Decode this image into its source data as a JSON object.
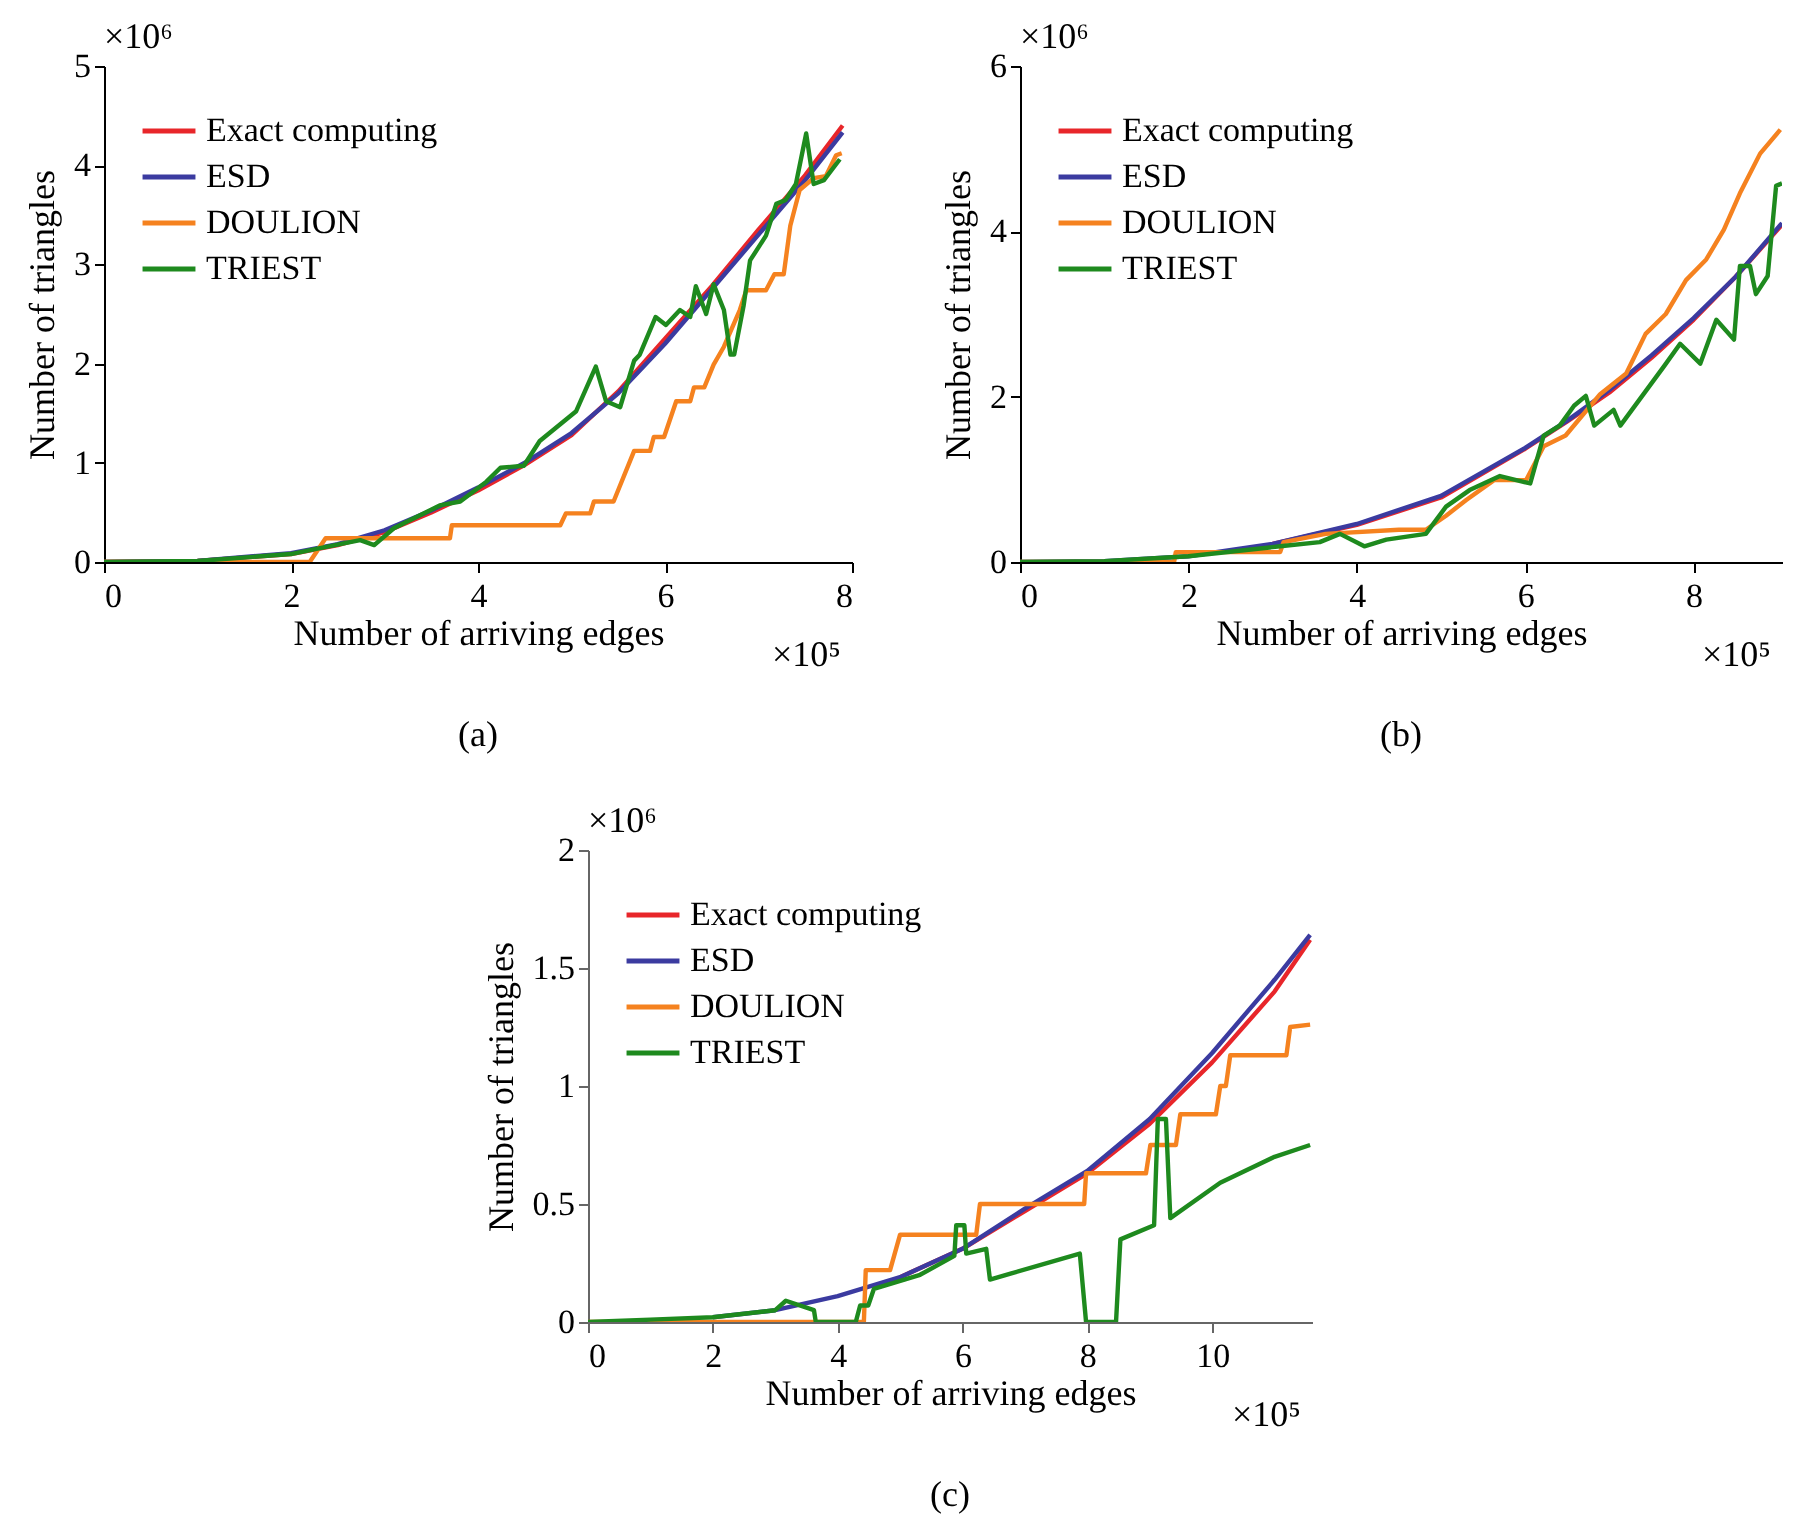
{
  "chart_data": [
    {
      "type": "line",
      "title": "(a)",
      "xlabel": "Number of arriving edges",
      "ylabel": "Number of triangles",
      "annotations": [
        "×10⁶",
        "×10⁵"
      ],
      "xlim": [
        0,
        8
      ],
      "xticks": [
        0,
        2,
        4,
        6,
        8
      ],
      "ylim": [
        0,
        5
      ],
      "yticks": [
        0,
        1,
        2,
        3,
        4,
        5
      ],
      "legend": "top left",
      "series": [
        {
          "name": "Exact computing",
          "color": "#e8262a",
          "x": [
            0,
            1,
            2,
            2.5,
            3,
            3.5,
            4,
            4.5,
            5,
            5.5,
            6,
            6.5,
            7,
            7.5,
            7.9
          ],
          "values": [
            0,
            0.01,
            0.08,
            0.17,
            0.3,
            0.5,
            0.72,
            0.98,
            1.28,
            1.72,
            2.25,
            2.78,
            3.35,
            3.9,
            4.4
          ]
        },
        {
          "name": "ESD",
          "color": "#3b3ba0",
          "x": [
            0,
            1,
            2,
            2.5,
            3,
            3.5,
            4,
            4.5,
            5,
            5.5,
            6,
            6.5,
            7,
            7.5,
            7.9
          ],
          "values": [
            0,
            0.01,
            0.09,
            0.18,
            0.32,
            0.52,
            0.75,
            1.0,
            1.3,
            1.7,
            2.2,
            2.75,
            3.3,
            3.85,
            4.33
          ]
        },
        {
          "name": "DOULION",
          "color": "#f5821f",
          "x": [
            0,
            2.2,
            2.37,
            3.7,
            3.72,
            4.88,
            4.94,
            5.2,
            5.24,
            5.45,
            5.67,
            5.84,
            5.88,
            5.99,
            6.12,
            6.27,
            6.31,
            6.42,
            6.52,
            6.63,
            6.8,
            6.87,
            7.08,
            7.17,
            7.27,
            7.34,
            7.44,
            7.59,
            7.72,
            7.83,
            7.89
          ],
          "values": [
            0,
            0,
            0.24,
            0.24,
            0.37,
            0.37,
            0.49,
            0.49,
            0.61,
            0.61,
            1.12,
            1.12,
            1.26,
            1.26,
            1.62,
            1.62,
            1.76,
            1.76,
            1.99,
            2.17,
            2.54,
            2.74,
            2.74,
            2.9,
            2.9,
            3.39,
            3.75,
            3.87,
            3.89,
            4.1,
            4.12
          ]
        },
        {
          "name": "TRIEST",
          "color": "#1e8a1e",
          "x": [
            0,
            1,
            2,
            2.31,
            2.74,
            2.89,
            3.1,
            3.59,
            3.81,
            4.09,
            4.24,
            4.49,
            4.66,
            5.05,
            5.26,
            5.37,
            5.52,
            5.67,
            5.73,
            5.9,
            6.01,
            6.16,
            6.27,
            6.33,
            6.44,
            6.52,
            6.63,
            6.7,
            6.74,
            6.84,
            6.91,
            7.08,
            7.19,
            7.29,
            7.4,
            7.51,
            7.59,
            7.7,
            7.87
          ],
          "values": [
            0,
            0.01,
            0.08,
            0.14,
            0.22,
            0.17,
            0.34,
            0.57,
            0.61,
            0.81,
            0.95,
            0.97,
            1.22,
            1.52,
            1.97,
            1.62,
            1.56,
            2.03,
            2.09,
            2.47,
            2.39,
            2.54,
            2.47,
            2.78,
            2.5,
            2.8,
            2.54,
            2.09,
            2.09,
            2.58,
            3.04,
            3.29,
            3.61,
            3.65,
            3.81,
            4.32,
            3.81,
            3.85,
            4.06
          ]
        }
      ]
    },
    {
      "type": "line",
      "title": "(b)",
      "xlabel": "Number of arriving edges",
      "ylabel": "Number of triangles",
      "annotations": [
        "×10⁶",
        "×10⁵"
      ],
      "xlim": [
        0,
        9.05
      ],
      "xticks": [
        0,
        2,
        4,
        6,
        8
      ],
      "ylim": [
        0,
        6
      ],
      "yticks": [
        0,
        2,
        4,
        6
      ],
      "legend": "top left",
      "series": [
        {
          "name": "Exact computing",
          "color": "#e8262a",
          "x": [
            3,
            4,
            5,
            6,
            6.5,
            7,
            7.5,
            8,
            8.5,
            9.05
          ],
          "values": [
            0.22,
            0.45,
            0.78,
            1.37,
            1.7,
            2.05,
            2.47,
            2.93,
            3.45,
            4.08
          ]
        },
        {
          "name": "ESD",
          "color": "#3b3ba0",
          "x": [
            0,
            1,
            2,
            3,
            4,
            5,
            6,
            6.5,
            7,
            7.5,
            8,
            8.5,
            9.05
          ],
          "values": [
            0,
            0.01,
            0.07,
            0.22,
            0.46,
            0.8,
            1.38,
            1.71,
            2.08,
            2.5,
            2.95,
            3.45,
            4.1
          ]
        },
        {
          "name": "DOULION",
          "color": "#f5821f",
          "x": [
            0,
            1.83,
            1.85,
            3.09,
            3.13,
            3.63,
            4.5,
            4.82,
            5.06,
            5.3,
            5.63,
            6.01,
            6.22,
            6.48,
            6.89,
            7.2,
            7.43,
            7.67,
            7.91,
            8.15,
            8.36,
            8.55,
            8.79,
            9.03
          ],
          "values": [
            0,
            0,
            0.12,
            0.12,
            0.24,
            0.34,
            0.39,
            0.39,
            0.56,
            0.75,
            0.99,
            0.99,
            1.4,
            1.53,
            2.03,
            2.28,
            2.76,
            3.0,
            3.41,
            3.66,
            4.02,
            4.46,
            4.94,
            5.23
          ]
        },
        {
          "name": "TRIEST",
          "color": "#1e8a1e",
          "x": [
            0,
            1,
            2,
            3.09,
            3.56,
            3.8,
            4.09,
            4.35,
            4.82,
            5.06,
            5.34,
            5.7,
            6.06,
            6.22,
            6.41,
            6.58,
            6.72,
            6.82,
            7.05,
            7.13,
            7.65,
            7.84,
            8.08,
            8.27,
            8.48,
            8.55,
            8.67,
            8.74,
            8.88,
            8.98,
            9.05
          ],
          "values": [
            0,
            0.01,
            0.07,
            0.19,
            0.24,
            0.34,
            0.19,
            0.27,
            0.34,
            0.67,
            0.87,
            1.04,
            0.95,
            1.53,
            1.65,
            1.89,
            2.01,
            1.65,
            1.84,
            1.65,
            2.37,
            2.64,
            2.4,
            2.93,
            2.69,
            3.58,
            3.58,
            3.24,
            3.46,
            4.55,
            4.58
          ]
        }
      ]
    },
    {
      "type": "line",
      "title": "(c)",
      "xlabel": "Number of arriving edges",
      "ylabel": "Number of triangles",
      "annotations": [
        "×10⁶",
        "×10⁵"
      ],
      "xlim": [
        0,
        11.6
      ],
      "xticks": [
        0,
        2,
        4,
        6,
        8,
        10
      ],
      "ylim": [
        0,
        2
      ],
      "yticks": [
        0,
        0.5,
        1,
        1.5,
        2
      ],
      "legend": "top left",
      "series": [
        {
          "name": "Exact computing",
          "color": "#e8262a",
          "x": [
            5,
            6,
            7,
            8,
            9,
            10,
            11,
            11.57
          ],
          "values": [
            0.19,
            0.31,
            0.47,
            0.63,
            0.84,
            1.1,
            1.4,
            1.62
          ]
        },
        {
          "name": "ESD",
          "color": "#3b3ba0",
          "x": [
            2,
            3,
            4,
            5,
            6,
            7,
            8,
            9,
            10,
            11,
            11.57
          ],
          "values": [
            0.02,
            0.05,
            0.11,
            0.19,
            0.31,
            0.48,
            0.64,
            0.86,
            1.14,
            1.45,
            1.64
          ]
        },
        {
          "name": "DOULION",
          "color": "#f5821f",
          "x": [
            0,
            4.42,
            4.45,
            4.84,
            5.0,
            6.22,
            6.28,
            7.95,
            7.98,
            8.94,
            9.01,
            9.42,
            9.49,
            10.06,
            10.13,
            10.22,
            10.29,
            11.19,
            11.25,
            11.57
          ],
          "values": [
            0,
            0,
            0.22,
            0.22,
            0.37,
            0.37,
            0.5,
            0.5,
            0.63,
            0.63,
            0.75,
            0.75,
            0.88,
            0.88,
            1.0,
            1.0,
            1.13,
            1.13,
            1.25,
            1.26
          ]
        },
        {
          "name": "TRIEST",
          "color": "#1e8a1e",
          "x": [
            0,
            1,
            2,
            3,
            3.17,
            3.62,
            3.65,
            4.29,
            4.36,
            4.49,
            4.58,
            5.32,
            5.87,
            5.9,
            6.03,
            6.06,
            6.38,
            6.44,
            7.88,
            7.98,
            8.46,
            8.53,
            9.07,
            9.13,
            9.26,
            9.33,
            10.13,
            11.0,
            11.57
          ],
          "values": [
            0,
            0.01,
            0.02,
            0.05,
            0.09,
            0.05,
            0,
            0,
            0.07,
            0.07,
            0.14,
            0.2,
            0.28,
            0.41,
            0.41,
            0.29,
            0.31,
            0.18,
            0.29,
            0,
            0,
            0.35,
            0.41,
            0.86,
            0.86,
            0.44,
            0.59,
            0.7,
            0.75
          ]
        }
      ]
    }
  ]
}
